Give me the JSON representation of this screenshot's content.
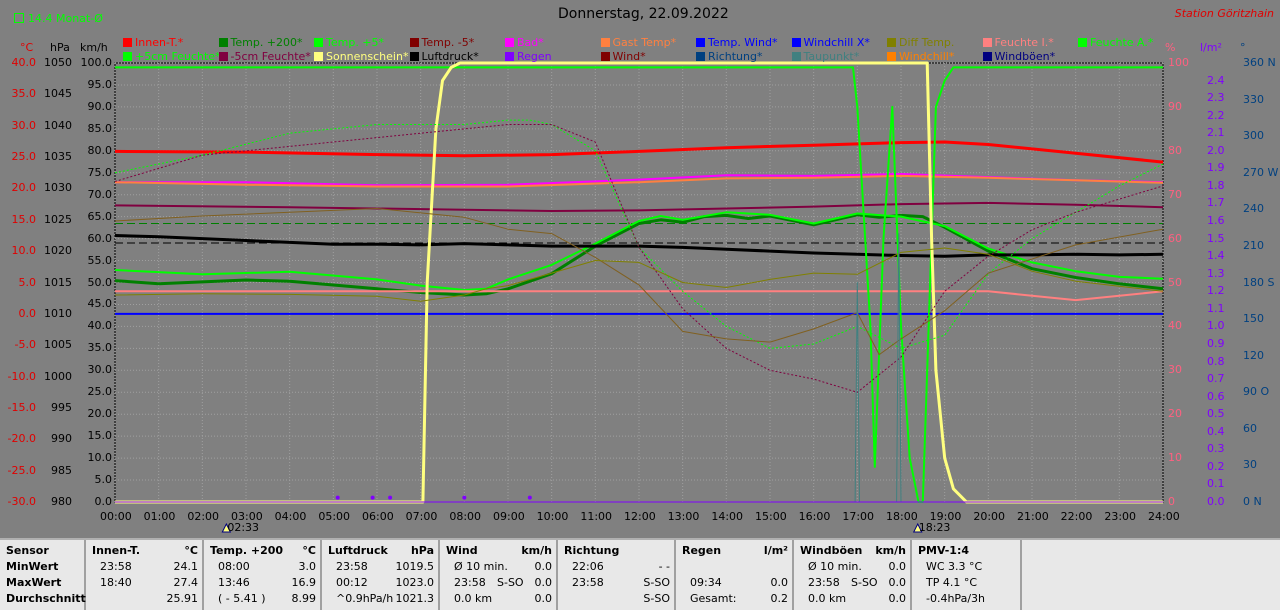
{
  "header": {
    "title": "Donnerstag, 22.09.2022",
    "station": "Station Göritzhain",
    "monthavg_label": "14.4 Monat-Ø"
  },
  "axes": {
    "units": {
      "celsius": "°C",
      "hpa": "hPa",
      "kmh": "km/h",
      "percent": "%",
      "rain": "l/m²",
      "dir": "°"
    },
    "celsius_ticks": [
      "40.0",
      "35.0",
      "30.0",
      "25.0",
      "20.0",
      "15.0",
      "10.0",
      "5.0",
      "0.0",
      "-5.0",
      "-10.0",
      "-15.0",
      "-20.0",
      "-25.0",
      "-30.0"
    ],
    "hpa_ticks": [
      "1050",
      "1045",
      "1040",
      "1035",
      "1030",
      "1025",
      "1020",
      "1015",
      "1010",
      "1005",
      "1000",
      "995",
      "990",
      "985",
      "980"
    ],
    "kmh_ticks": [
      "100.0",
      "95.0",
      "90.0",
      "85.0",
      "80.0",
      "75.0",
      "70.0",
      "65.0",
      "60.0",
      "55.0",
      "50.0",
      "45.0",
      "40.0",
      "35.0",
      "30.0",
      "25.0",
      "20.0",
      "15.0",
      "10.0",
      "5.0",
      "0.0"
    ],
    "percent_ticks": [
      "100",
      "90",
      "80",
      "70",
      "60",
      "50",
      "40",
      "30",
      "20",
      "10",
      "0"
    ],
    "rain_ticks": [
      "2.4",
      "2.3",
      "2.2",
      "2.1",
      "2.0",
      "1.9",
      "1.8",
      "1.7",
      "1.6",
      "1.5",
      "1.4",
      "1.3",
      "1.2",
      "1.1",
      "1.0",
      "0.9",
      "0.8",
      "0.7",
      "0.6",
      "0.5",
      "0.4",
      "0.3",
      "0.2",
      "0.1",
      "0.0"
    ],
    "dir_ticks": [
      "360 N",
      "330",
      "300",
      "270 W",
      "240",
      "210",
      "180 S",
      "150",
      "120",
      "90 O",
      "60",
      "30",
      "0 N"
    ],
    "time_ticks": [
      "00:00",
      "01:00",
      "02:00",
      "03:00",
      "04:00",
      "05:00",
      "06:00",
      "07:00",
      "08:00",
      "09:00",
      "10:00",
      "11:00",
      "12:00",
      "13:00",
      "14:00",
      "15:00",
      "16:00",
      "17:00",
      "18:00",
      "19:00",
      "20:00",
      "21:00",
      "22:00",
      "23:00",
      "24:00"
    ],
    "sunrise": "02:33",
    "sunset": "18:23"
  },
  "legend": [
    {
      "label": "Innen-T.*",
      "color": "#ff0000"
    },
    {
      "label": "Temp. +200*",
      "color": "#008000"
    },
    {
      "label": "Temp. +5*",
      "color": "#00ff00"
    },
    {
      "label": "Temp. -5*",
      "color": "#800000"
    },
    {
      "label": "Bad*",
      "color": "#ff00ff"
    },
    {
      "label": "Gast Temp*",
      "color": "#ff8040"
    },
    {
      "label": "Temp. Wind*",
      "color": "#0000ff"
    },
    {
      "label": "Windchill X*",
      "color": "#0000ff"
    },
    {
      "label": "Diff Temp.",
      "color": "#808000"
    },
    {
      "label": "Feuchte I.*",
      "color": "#ff8080"
    },
    {
      "label": "Feuchte A.*",
      "color": "#00ff00"
    },
    {
      "label": "+5cm Feuchte*",
      "color": "#00ff00"
    },
    {
      "label": "-5cm Feuchte*",
      "color": "#800040"
    },
    {
      "label": "Sonnenschein*",
      "color": "#ffff80"
    },
    {
      "label": "Luftdruck*",
      "color": "#000000"
    },
    {
      "label": "Regen",
      "color": "#8000ff"
    },
    {
      "label": "Wind*",
      "color": "#800000"
    },
    {
      "label": "Richtung*",
      "color": "#004080"
    },
    {
      "label": "Taupunkt*",
      "color": "#408080"
    },
    {
      "label": "Windchill*",
      "color": "#ff8000"
    },
    {
      "label": "Windböen*",
      "color": "#000080"
    }
  ],
  "chart_data": {
    "type": "line",
    "x_unit": "hour",
    "xlim": [
      0,
      24
    ],
    "ylim_celsius": [
      -30,
      40
    ],
    "ylim_hpa": [
      980,
      1050
    ],
    "ylim_kmh": [
      0,
      100
    ],
    "ylim_percent": [
      0,
      100
    ],
    "ylim_rain": [
      0,
      2.5
    ],
    "ylim_dir": [
      0,
      360
    ],
    "grid": true,
    "legend_position": "top",
    "series": [
      {
        "name": "Innen-T.*",
        "axis": "celsius",
        "color": "#ff0000",
        "width": 3,
        "x": [
          0,
          3,
          6,
          8,
          10,
          12,
          14,
          16,
          18,
          19,
          20,
          22,
          24
        ],
        "y": [
          25.9,
          25.8,
          25.4,
          25.2,
          25.4,
          25.9,
          26.5,
          26.9,
          27.3,
          27.4,
          27.0,
          25.6,
          24.2
        ]
      },
      {
        "name": "Temp. +200*",
        "axis": "celsius",
        "color": "#008000",
        "width": 3,
        "x": [
          0,
          1,
          3,
          4,
          5,
          6,
          7,
          8,
          8.5,
          9,
          10,
          11,
          12,
          12.5,
          13,
          13.5,
          14,
          14.5,
          15,
          16,
          17,
          17.5,
          18,
          18.5,
          19,
          20,
          21,
          22,
          23,
          24
        ],
        "y": [
          5.3,
          4.8,
          5.4,
          5.2,
          4.6,
          4.0,
          3.4,
          3.0,
          3.2,
          4.0,
          6.4,
          10.8,
          14.4,
          15.0,
          14.6,
          15.5,
          15.7,
          15.2,
          15.6,
          14.2,
          15.8,
          15.4,
          15.7,
          15.5,
          13.8,
          10.0,
          7.2,
          5.8,
          4.8,
          4.0
        ]
      },
      {
        "name": "Temp. +5*",
        "axis": "celsius",
        "color": "#00ff00",
        "width": 2,
        "x": [
          0,
          2,
          4,
          6,
          7,
          8,
          8.5,
          9,
          10,
          11,
          12,
          12.5,
          13,
          14,
          15,
          16,
          17,
          18,
          19,
          20,
          21,
          22,
          23,
          24
        ],
        "y": [
          7.0,
          6.3,
          6.7,
          5.5,
          4.5,
          3.8,
          4.0,
          5.5,
          7.8,
          11.2,
          14.8,
          15.6,
          15.0,
          16.2,
          15.8,
          14.4,
          16.0,
          15.5,
          14.0,
          10.4,
          8.2,
          6.8,
          5.9,
          5.6
        ]
      },
      {
        "name": "Temp. -5*",
        "axis": "celsius",
        "color": "#800040",
        "width": 2,
        "x": [
          0,
          4,
          8,
          10,
          12,
          14,
          16,
          18,
          20,
          22,
          24
        ],
        "y": [
          17.3,
          17.0,
          16.6,
          16.4,
          16.5,
          16.8,
          17.1,
          17.5,
          17.7,
          17.4,
          17.0
        ]
      },
      {
        "name": "Bad*",
        "axis": "celsius",
        "color": "#ff00ff",
        "width": 2,
        "x": [
          0,
          3,
          6,
          9,
          12,
          14,
          16,
          18,
          20,
          22,
          24
        ],
        "y": [
          21.0,
          21.0,
          20.5,
          20.6,
          21.4,
          22.1,
          22.0,
          22.3,
          21.8,
          21.3,
          21.0
        ]
      },
      {
        "name": "Gast Temp*",
        "axis": "celsius",
        "color": "#ff8040",
        "width": 2,
        "x": [
          0,
          3,
          6,
          9,
          12,
          14,
          16,
          18,
          20,
          22,
          24
        ],
        "y": [
          21.0,
          20.6,
          20.3,
          20.3,
          21.0,
          21.6,
          21.7,
          22.0,
          21.7,
          21.3,
          20.9
        ]
      },
      {
        "name": "Windchill X*",
        "axis": "celsius",
        "color": "#0000ff",
        "width": 2,
        "x": [
          0,
          24
        ],
        "y": [
          0,
          0
        ]
      },
      {
        "name": "Luftdruck*",
        "axis": "hpa",
        "color": "#000000",
        "width": 3,
        "x": [
          0,
          1,
          2,
          3,
          4,
          5,
          6,
          7,
          8,
          9,
          10,
          11,
          12,
          13,
          14,
          15,
          16,
          17,
          18,
          19,
          20,
          21,
          22,
          23,
          24
        ],
        "y": [
          1022.5,
          1022.3,
          1022.0,
          1021.7,
          1021.4,
          1021.1,
          1021.1,
          1021.0,
          1021.2,
          1021.0,
          1020.8,
          1020.8,
          1020.8,
          1020.6,
          1020.3,
          1020.0,
          1019.7,
          1019.5,
          1019.3,
          1019.2,
          1019.4,
          1019.4,
          1019.5,
          1019.4,
          1019.5
        ]
      },
      {
        "name": "Feuchte I.*",
        "axis": "percent",
        "color": "#ff8080",
        "width": 2,
        "x": [
          0,
          3,
          6,
          8,
          10,
          12,
          14,
          16,
          18,
          20,
          21,
          22,
          23,
          24
        ],
        "y": [
          48,
          48,
          48,
          48,
          48,
          48,
          48,
          48,
          48,
          48,
          47,
          46,
          47,
          48
        ]
      },
      {
        "name": "Feuchte A.*",
        "axis": "percent",
        "color": "#00ff00",
        "width": 2,
        "x": [
          0,
          16.9,
          17.0,
          17.3,
          17.4,
          17.6,
          17.8,
          18.0,
          18.2,
          18.4,
          18.5,
          18.6,
          18.8,
          19.0,
          19.2,
          19.5,
          20,
          24
        ],
        "y": [
          99,
          99,
          90,
          40,
          8,
          60,
          90,
          40,
          10,
          0,
          0,
          30,
          90,
          96,
          99,
          99,
          99,
          99
        ]
      },
      {
        "name": "Sonnenschein*",
        "axis": "percent",
        "color": "#ffff80",
        "width": 3,
        "x": [
          0,
          7.05,
          7.15,
          7.35,
          7.5,
          7.7,
          7.9,
          8.0,
          18.6,
          18.7,
          18.8,
          19.0,
          19.2,
          19.5,
          24
        ],
        "y": [
          0,
          0,
          50,
          85,
          96,
          99,
          100,
          100,
          100,
          60,
          30,
          10,
          3,
          0,
          0
        ]
      },
      {
        "name": "+5cm Feuchte*",
        "axis": "percent",
        "color": "#00ff00",
        "width": 1,
        "dashed": true,
        "x": [
          0,
          2,
          4,
          6,
          8,
          9,
          9.5,
          10,
          11,
          12,
          13,
          14,
          15,
          16,
          17,
          18,
          19,
          20,
          21,
          22,
          23,
          24
        ],
        "y": [
          75,
          79,
          84,
          86,
          86,
          87,
          87,
          86,
          80,
          58,
          48,
          40,
          35,
          36,
          40,
          35,
          38,
          52,
          60,
          66,
          72,
          77
        ]
      },
      {
        "name": "-5cm Feuchte*",
        "axis": "percent",
        "color": "#800040",
        "width": 1,
        "dashed": true,
        "x": [
          0,
          1,
          2,
          3,
          4,
          5,
          6,
          7,
          8,
          9,
          10,
          11,
          12,
          13,
          14,
          15,
          16,
          17,
          18,
          19,
          20,
          21,
          22,
          23,
          24
        ],
        "y": [
          73,
          76,
          79,
          80,
          81,
          82,
          83,
          84,
          85,
          86,
          86,
          82,
          58,
          44,
          35,
          30,
          28,
          25,
          33,
          48,
          56,
          62,
          66,
          69,
          72
        ]
      },
      {
        "name": "Taupunkt*",
        "axis": "celsius",
        "color": "#806020",
        "width": 1,
        "x": [
          0,
          2,
          4,
          6,
          8,
          9,
          10,
          11,
          12,
          13,
          14,
          15,
          16,
          17,
          17.5,
          18,
          19,
          20,
          22,
          24
        ],
        "y": [
          14.8,
          15.6,
          16.2,
          16.8,
          15.4,
          13.5,
          12.8,
          9.0,
          4.6,
          -2.8,
          -4.0,
          -4.5,
          -2.4,
          0.2,
          -6.5,
          -4.0,
          0.5,
          6.5,
          11.0,
          13.5
        ]
      },
      {
        "name": "Diff Temp.",
        "axis": "celsius",
        "color": "#808000",
        "width": 1,
        "x": [
          0,
          2,
          4,
          6,
          7,
          8,
          8.5,
          9,
          10,
          11,
          12,
          13,
          14,
          15,
          16,
          17,
          18,
          19,
          20,
          21,
          22,
          23,
          24
        ],
        "y": [
          3.0,
          3.2,
          3.1,
          2.8,
          2.0,
          3.0,
          4.0,
          4.5,
          6.5,
          8.5,
          8.2,
          5.0,
          4.2,
          5.5,
          6.5,
          6.3,
          9.8,
          10.5,
          9.5,
          6.8,
          5.2,
          4.4,
          3.6
        ]
      },
      {
        "name": "Richtung*",
        "axis": "dir",
        "color": "#408080",
        "width": 1,
        "x": [
          16.95,
          17.0,
          17.05,
          17.9,
          17.95,
          18.0
        ],
        "y": [
          0,
          180,
          0,
          0,
          220,
          0
        ]
      },
      {
        "name": "Regen",
        "axis": "rain",
        "color": "#8000ff",
        "width": 1,
        "x": [
          0,
          24
        ],
        "y": [
          0,
          0
        ]
      }
    ],
    "markers": {
      "color": "#8000ff",
      "x": [
        5.1,
        5.9,
        6.3,
        8.0,
        9.5
      ],
      "y_percent": 1
    }
  },
  "stats": {
    "columns": [
      {
        "title": "Sensor",
        "unit": "",
        "rows": [
          [
            "MinWert",
            "",
            ""
          ],
          [
            "MaxWert",
            "",
            ""
          ],
          [
            "Durchschnitt",
            "",
            ""
          ]
        ]
      },
      {
        "title": "Innen-T.",
        "unit": "°C",
        "rows": [
          [
            "23:58",
            "",
            "24.1"
          ],
          [
            "18:40",
            "",
            "27.4"
          ],
          [
            "",
            "",
            "25.91"
          ]
        ]
      },
      {
        "title": "Temp. +200",
        "unit": "°C",
        "rows": [
          [
            "08:00",
            "",
            "3.0"
          ],
          [
            "13:46",
            "",
            "16.9"
          ],
          [
            "( - 5.41 )",
            "",
            "8.99"
          ]
        ]
      },
      {
        "title": "Luftdruck",
        "unit": "hPa",
        "rows": [
          [
            "23:58",
            "",
            "1019.5"
          ],
          [
            "00:12",
            "",
            "1023.0"
          ],
          [
            "^0.9hPa/h",
            "",
            "1021.3"
          ]
        ]
      },
      {
        "title": "Wind",
        "unit": "km/h",
        "rows": [
          [
            "Ø 10 min.",
            "",
            "0.0"
          ],
          [
            "23:58",
            "S-SO",
            "0.0"
          ],
          [
            "0.0 km",
            "",
            "0.0"
          ]
        ]
      },
      {
        "title": "Richtung",
        "unit": "",
        "rows": [
          [
            "22:06",
            "",
            "- -"
          ],
          [
            "23:58",
            "",
            "S-SO"
          ],
          [
            "",
            "",
            "S-SO"
          ]
        ]
      },
      {
        "title": "Regen",
        "unit": "l/m²",
        "rows": [
          [
            "",
            "",
            ""
          ],
          [
            "09:34",
            "",
            "0.0"
          ],
          [
            "Gesamt:",
            "",
            "0.2"
          ]
        ]
      },
      {
        "title": "Windböen",
        "unit": "km/h",
        "rows": [
          [
            "Ø 10 min.",
            "",
            "0.0"
          ],
          [
            "23:58",
            "S-SO",
            "0.0"
          ],
          [
            "0.0 km",
            "",
            "0.0"
          ]
        ]
      },
      {
        "title": "PMV-1:4",
        "unit": "",
        "rows": [
          [
            "WC 3.3 °C",
            "",
            ""
          ],
          [
            "TP 4.1 °C",
            "",
            ""
          ],
          [
            "-0.4hPa/3h",
            "",
            ""
          ]
        ]
      }
    ]
  }
}
